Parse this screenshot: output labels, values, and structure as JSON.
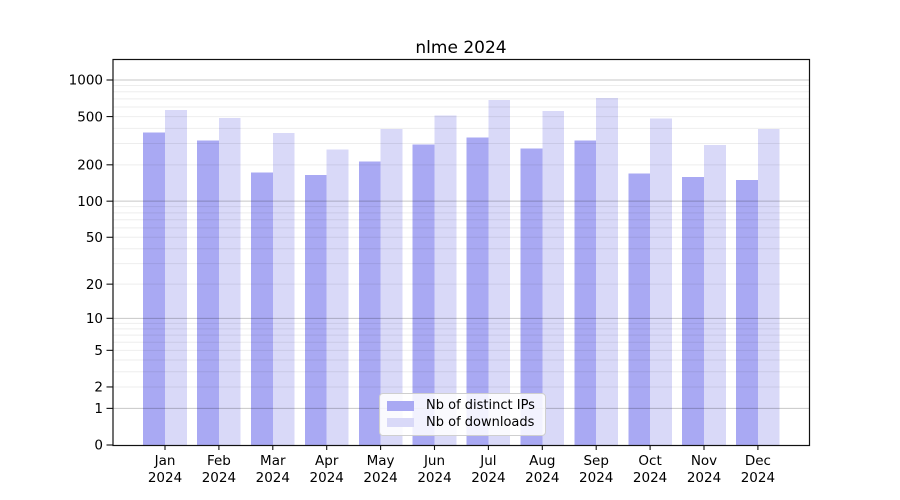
{
  "chart_data": {
    "type": "bar",
    "title": "nlme 2024",
    "yscale": "log1p",
    "categories": [
      "Jan",
      "Feb",
      "Mar",
      "Apr",
      "May",
      "Jun",
      "Jul",
      "Aug",
      "Sep",
      "Oct",
      "Nov",
      "Dec"
    ],
    "category_year": "2024",
    "series": [
      {
        "name": "Nb of distinct IPs",
        "color": "#a9a9f3",
        "values": [
          368,
          318,
          172,
          164,
          214,
          293,
          336,
          273,
          316,
          169,
          158,
          150
        ]
      },
      {
        "name": "Nb of downloads",
        "color": "#d9d9f8",
        "values": [
          568,
          486,
          366,
          267,
          395,
          510,
          686,
          556,
          709,
          484,
          291,
          394
        ]
      }
    ],
    "yticks": [
      1000,
      500,
      200,
      100,
      50,
      20,
      10,
      5,
      2,
      1,
      0
    ],
    "ylim": [
      0,
      1400
    ],
    "grid": true,
    "legend_position": "lower center",
    "colors": {
      "background": "#ffffff",
      "spine": "#111111",
      "tick": "#111111",
      "grid_major": "rgba(0,0,0,0.22)",
      "grid_minor": "rgba(0,0,0,0.07)",
      "text": "#000000"
    }
  }
}
